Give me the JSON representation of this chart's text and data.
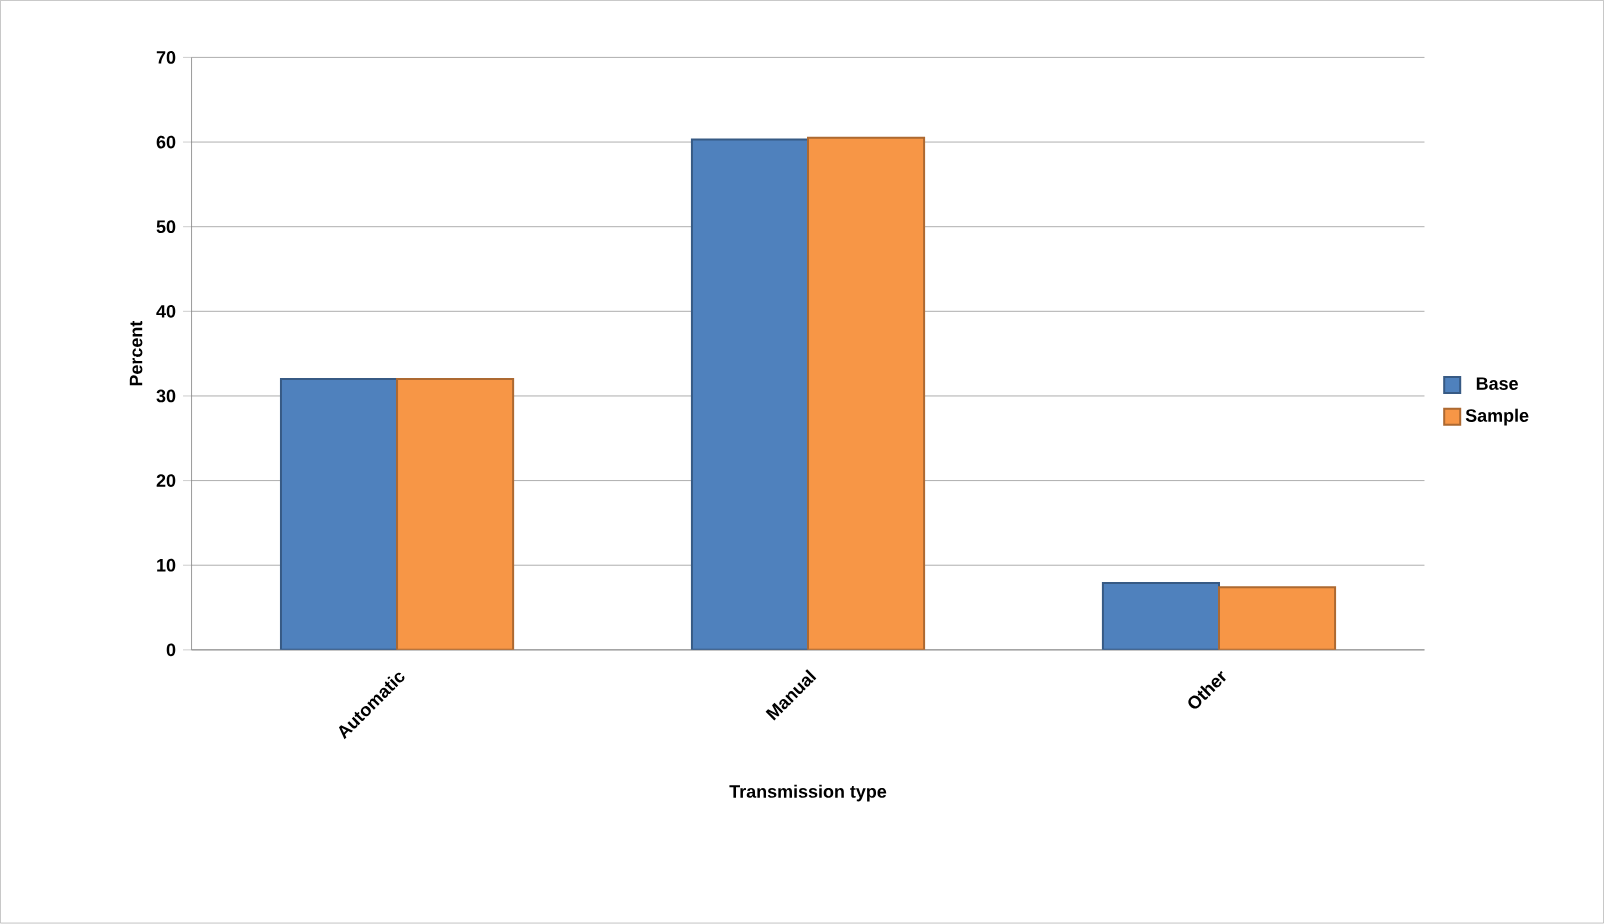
{
  "chart_data": {
    "type": "bar",
    "xlabel": "Transmission type",
    "ylabel": "Percent",
    "categories": [
      "Automatic",
      "Manual",
      "Other"
    ],
    "series": [
      {
        "name": "Base",
        "color": "#4f81bd",
        "values": [
          32.0,
          60.3,
          7.9
        ]
      },
      {
        "name": "Sample",
        "color": "#f79646",
        "values": [
          32.0,
          60.5,
          7.4
        ]
      }
    ],
    "ylim": [
      0,
      70
    ],
    "yticks": [
      0,
      10,
      20,
      30,
      40,
      50,
      60,
      70
    ],
    "grid": "y",
    "legend": "right"
  }
}
